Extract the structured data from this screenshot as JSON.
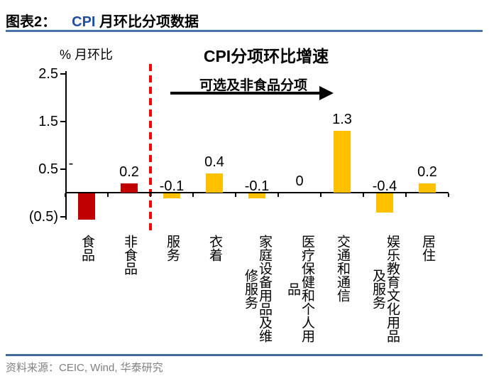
{
  "header": {
    "label": "图表2：",
    "title_cpi": "CPI",
    "title_cn": " 月环比分项数据"
  },
  "footer": {
    "source": "资料来源：CEIC, Wind, 华泰研究"
  },
  "colors": {
    "food_bar": "#C00000",
    "other_bar": "#FFC000",
    "separator_red": "#FF0000",
    "header_rule": "#4A74A8",
    "footer_rule": "#44699B",
    "source_text": "#7F7F7F",
    "title_cpi_blue": "#1F4EA0"
  },
  "chart_data": {
    "type": "bar",
    "title": "CPI分项环比增速",
    "ylabel": "% 月环比",
    "ylim": [
      -0.5,
      2.5
    ],
    "yticks": [
      {
        "value": 2.5,
        "label": "2.5"
      },
      {
        "value": 1.5,
        "label": "1.5"
      },
      {
        "value": 0.5,
        "label": "0.5"
      },
      {
        "value": -0.5,
        "label": "(0.5)"
      }
    ],
    "annotation": {
      "text": "可选及非食品分项",
      "arrow": "right"
    },
    "separator": {
      "after_category": "非食品",
      "style": "red dashed vertical line"
    },
    "grid": false,
    "legend": false,
    "categories": [
      "食品",
      "非食品",
      "服务",
      "衣着",
      "家庭设备用品及维修服务",
      "医疗保健和个人用品",
      "交通和通信",
      "娱乐教育文化用品及服务",
      "居住"
    ],
    "values": [
      -0.55,
      0.2,
      -0.1,
      0.4,
      -0.1,
      0,
      1.3,
      -0.4,
      0.2
    ],
    "value_labels": [
      "-",
      "0.2",
      "-0.1",
      "0.4",
      "-0.1",
      "0",
      "1.3",
      "-0.4",
      "0.2"
    ],
    "bar_colors": [
      "#C00000",
      "#C00000",
      "#FFC000",
      "#FFC000",
      "#FFC000",
      "#FFC000",
      "#FFC000",
      "#FFC000",
      "#FFC000"
    ],
    "category_label_columns": [
      [
        "食品"
      ],
      [
        "非食品"
      ],
      [
        "服务"
      ],
      [
        "衣着"
      ],
      [
        "家庭设备用品及维",
        "修服务"
      ],
      [
        "医疗保健和个人用",
        "品"
      ],
      [
        "交通和通信"
      ],
      [
        "娱乐教育文化用品",
        "及服务"
      ],
      [
        "居住"
      ]
    ]
  }
}
